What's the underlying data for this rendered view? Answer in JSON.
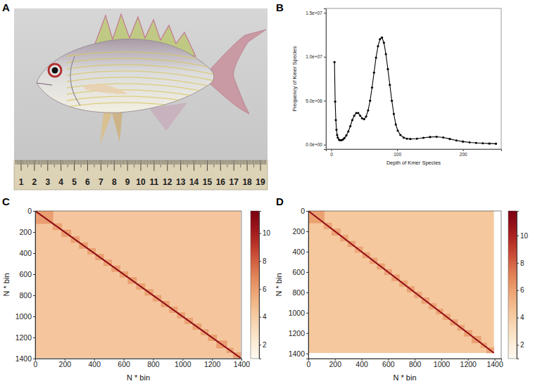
{
  "chart_data": [
    {
      "type": "image",
      "panel_label": "A",
      "ruler_labels": [
        1,
        2,
        3,
        4,
        5,
        6,
        7,
        8,
        9,
        10,
        11,
        12,
        13,
        14,
        15,
        16,
        17,
        18,
        19
      ]
    },
    {
      "type": "line",
      "panel_label": "B",
      "x_label": "Depth of Kmer Species",
      "y_label": "Frequency of Kmer Species",
      "x": [
        5,
        6,
        7,
        8,
        9,
        10,
        12,
        14,
        16,
        18,
        20,
        23,
        26,
        29,
        32,
        35,
        38,
        41,
        44,
        47,
        50,
        53,
        56,
        59,
        62,
        65,
        68,
        71,
        74,
        77,
        80,
        83,
        86,
        89,
        92,
        95,
        98,
        101,
        105,
        110,
        115,
        120,
        130,
        140,
        150,
        160,
        170,
        180,
        190,
        200,
        210,
        220,
        230,
        240,
        250
      ],
      "values": [
        9400000,
        4900000,
        2800000,
        1700000,
        1100000,
        800000,
        550000,
        500000,
        520000,
        600000,
        750000,
        1050000,
        1500000,
        2100000,
        2800000,
        3300000,
        3600000,
        3600000,
        3300000,
        3000000,
        2900000,
        3200000,
        3900000,
        5000000,
        6500000,
        8200000,
        9900000,
        11200000,
        12000000,
        12200000,
        11600000,
        10300000,
        8600000,
        6800000,
        5000000,
        3500000,
        2300000,
        1600000,
        1100000,
        800000,
        680000,
        650000,
        680000,
        780000,
        870000,
        900000,
        820000,
        650000,
        480000,
        350000,
        260000,
        200000,
        160000,
        130000,
        110000
      ],
      "xlim": [
        -8,
        258
      ],
      "ylim": [
        -500000,
        15500000
      ],
      "xticks": [
        0,
        100,
        200
      ],
      "yticks": [
        {
          "value": 0,
          "label": "0.0e+00"
        },
        {
          "value": 5000000,
          "label": "5.0e+06"
        },
        {
          "value": 10000000,
          "label": "1.0e+07"
        },
        {
          "value": 15000000,
          "label": "1.5e+07"
        }
      ],
      "color": "#000000",
      "marker": "circle",
      "grid": false
    },
    {
      "type": "heatmap",
      "panel_label": "C",
      "x_label": "N * bin",
      "y_label": "N * bin",
      "xlim": [
        0,
        1400
      ],
      "ylim": [
        0,
        1400
      ],
      "xticks": [
        0,
        200,
        400,
        600,
        800,
        1000,
        1200,
        1400
      ],
      "yticks": [
        0,
        200,
        400,
        600,
        800,
        1000,
        1200,
        1400
      ],
      "background": 4.3,
      "diagonal": 11,
      "blocks": [
        {
          "start": 0,
          "end": 120,
          "value": 6.0
        },
        {
          "start": 120,
          "end": 180,
          "value": 5.8
        },
        {
          "start": 180,
          "end": 243,
          "value": 5.9
        },
        {
          "start": 243,
          "end": 300,
          "value": 5.8
        },
        {
          "start": 300,
          "end": 355,
          "value": 5.9
        },
        {
          "start": 355,
          "end": 410,
          "value": 5.8
        },
        {
          "start": 410,
          "end": 465,
          "value": 5.9
        },
        {
          "start": 465,
          "end": 520,
          "value": 5.8
        },
        {
          "start": 520,
          "end": 575,
          "value": 5.9
        },
        {
          "start": 575,
          "end": 630,
          "value": 5.8
        },
        {
          "start": 630,
          "end": 688,
          "value": 5.9
        },
        {
          "start": 688,
          "end": 745,
          "value": 5.8
        },
        {
          "start": 745,
          "end": 800,
          "value": 5.9
        },
        {
          "start": 800,
          "end": 855,
          "value": 5.8
        },
        {
          "start": 855,
          "end": 910,
          "value": 5.9
        },
        {
          "start": 910,
          "end": 965,
          "value": 5.8
        },
        {
          "start": 965,
          "end": 1015,
          "value": 5.9
        },
        {
          "start": 1015,
          "end": 1070,
          "value": 5.8
        },
        {
          "start": 1070,
          "end": 1125,
          "value": 5.9
        },
        {
          "start": 1125,
          "end": 1175,
          "value": 5.8
        },
        {
          "start": 1175,
          "end": 1232,
          "value": 5.9
        },
        {
          "start": 1232,
          "end": 1300,
          "value": 6.0
        },
        {
          "start": 1300,
          "end": 1345,
          "value": 5.8
        },
        {
          "start": 1345,
          "end": 1395,
          "value": 5.9
        }
      ],
      "colorbar": {
        "range": [
          1,
          11.6
        ],
        "ticks": [
          2,
          4,
          6,
          8,
          10
        ]
      }
    },
    {
      "type": "heatmap",
      "panel_label": "D",
      "x_label": "N * bin",
      "y_label": "N * bin",
      "xlim": [
        0,
        1450
      ],
      "ylim": [
        0,
        1450
      ],
      "xticks": [
        0,
        200,
        400,
        600,
        800,
        1000,
        1200,
        1400
      ],
      "yticks": [
        0,
        200,
        400,
        600,
        800,
        1000,
        1200,
        1400
      ],
      "background": 4.3,
      "diagonal": 11,
      "blocks": [
        {
          "start": 0,
          "end": 118,
          "value": 6.0
        },
        {
          "start": 118,
          "end": 176,
          "value": 5.8
        },
        {
          "start": 176,
          "end": 240,
          "value": 5.9
        },
        {
          "start": 240,
          "end": 297,
          "value": 5.8
        },
        {
          "start": 297,
          "end": 352,
          "value": 5.9
        },
        {
          "start": 352,
          "end": 408,
          "value": 5.8
        },
        {
          "start": 408,
          "end": 462,
          "value": 5.9
        },
        {
          "start": 462,
          "end": 518,
          "value": 5.8
        },
        {
          "start": 518,
          "end": 573,
          "value": 5.9
        },
        {
          "start": 573,
          "end": 628,
          "value": 5.8
        },
        {
          "start": 628,
          "end": 686,
          "value": 5.9
        },
        {
          "start": 686,
          "end": 742,
          "value": 5.8
        },
        {
          "start": 742,
          "end": 797,
          "value": 5.9
        },
        {
          "start": 797,
          "end": 852,
          "value": 5.8
        },
        {
          "start": 852,
          "end": 908,
          "value": 5.9
        },
        {
          "start": 908,
          "end": 962,
          "value": 5.8
        },
        {
          "start": 962,
          "end": 1013,
          "value": 5.9
        },
        {
          "start": 1013,
          "end": 1068,
          "value": 5.8
        },
        {
          "start": 1068,
          "end": 1122,
          "value": 5.9
        },
        {
          "start": 1122,
          "end": 1173,
          "value": 5.8
        },
        {
          "start": 1173,
          "end": 1230,
          "value": 5.9
        },
        {
          "start": 1230,
          "end": 1297,
          "value": 6.0
        },
        {
          "start": 1297,
          "end": 1343,
          "value": 5.8
        },
        {
          "start": 1343,
          "end": 1395,
          "value": 5.9
        }
      ],
      "colorbar": {
        "range": [
          1,
          11.8
        ],
        "ticks": [
          2,
          4,
          6,
          8,
          10
        ]
      }
    }
  ]
}
